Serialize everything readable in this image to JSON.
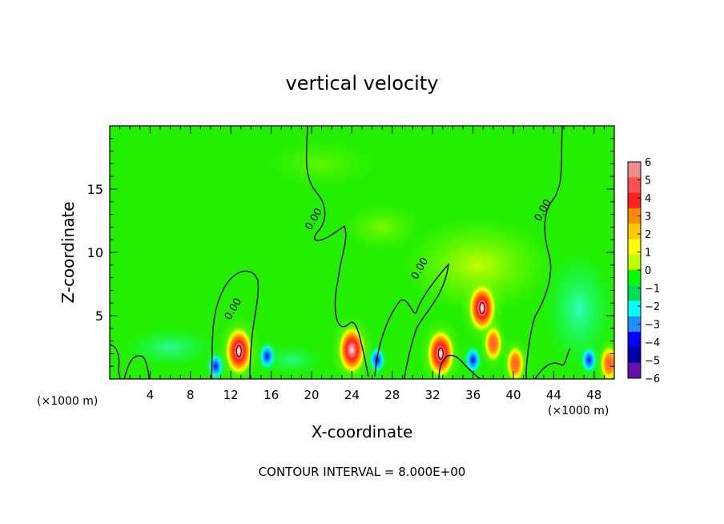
{
  "chart_data": {
    "type": "heatmap",
    "title": "vertical velocity",
    "xlabel": "X-coordinate",
    "ylabel": "Z-coordinate",
    "x_unit_left": "(×1000 m)",
    "x_unit_right": "(×1000 m)",
    "footer": "CONTOUR INTERVAL = 8.000E+00",
    "xlim": [
      0,
      50
    ],
    "ylim": [
      0,
      20
    ],
    "x_ticks": [
      4,
      8,
      12,
      16,
      20,
      24,
      28,
      32,
      36,
      40,
      44,
      48
    ],
    "y_ticks": [
      5,
      10,
      15
    ],
    "contour_label": "0.00",
    "contour_label_positions": [
      [
        20.5,
        12.5
      ],
      [
        12.5,
        5.4
      ],
      [
        31,
        8.6
      ],
      [
        43.2,
        13.2
      ]
    ],
    "colorbar": {
      "levels": [
        6,
        5,
        4,
        3,
        2,
        1,
        0,
        -1,
        -2,
        -3,
        -4,
        -5,
        -6
      ],
      "tick_labels": [
        "6",
        "5",
        "4",
        "3",
        "2",
        "1",
        "0",
        "−1",
        "−2",
        "−3",
        "−4",
        "−5",
        "−6"
      ],
      "colors": [
        "#f08c8c",
        "#ff5050",
        "#ff2020",
        "#ff8c00",
        "#ffc800",
        "#ffff00",
        "#bfff00",
        "#00ff00",
        "#00dd55",
        "#00ffff",
        "#1e90ff",
        "#0000ff",
        "#0000aa",
        "#6a0dad"
      ]
    },
    "features": [
      {
        "kind": "updraft",
        "x": 12.8,
        "z": 2.2,
        "peak": 6
      },
      {
        "kind": "updraft",
        "x": 24.0,
        "z": 2.3,
        "peak": 5
      },
      {
        "kind": "updraft",
        "x": 32.8,
        "z": 2.0,
        "peak": 6
      },
      {
        "kind": "updraft",
        "x": 36.9,
        "z": 5.6,
        "peak": 6
      },
      {
        "kind": "updraft",
        "x": 38.0,
        "z": 2.8,
        "peak": 4
      },
      {
        "kind": "updraft",
        "x": 40.2,
        "z": 1.2,
        "peak": 4
      },
      {
        "kind": "updraft",
        "x": 49.5,
        "z": 1.2,
        "peak": 3
      },
      {
        "kind": "downdraft",
        "x": 15.6,
        "z": 1.8,
        "peak": -4
      },
      {
        "kind": "downdraft",
        "x": 10.5,
        "z": 1.0,
        "peak": -3
      },
      {
        "kind": "downdraft",
        "x": 26.5,
        "z": 1.5,
        "peak": -3
      },
      {
        "kind": "downdraft",
        "x": 36.0,
        "z": 1.5,
        "peak": -4
      },
      {
        "kind": "downdraft",
        "x": 47.5,
        "z": 1.5,
        "peak": -3
      }
    ]
  }
}
